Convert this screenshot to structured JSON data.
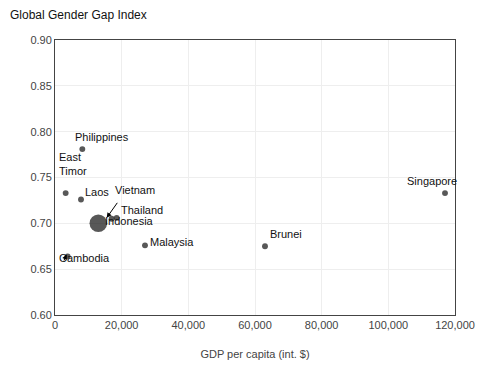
{
  "chart_data": {
    "type": "scatter",
    "title": "Global Gender Gap Index",
    "xlabel": "GDP per capita (int. $)",
    "x": [
      8200,
      3200,
      7800,
      17000,
      18500,
      13000,
      3800,
      27000,
      63000,
      117000
    ],
    "values": [
      0.781,
      0.733,
      0.726,
      0.705,
      0.706,
      0.7,
      0.664,
      0.676,
      0.675,
      0.733
    ],
    "sizes": [
      18,
      18,
      18,
      18,
      18,
      160,
      18,
      18,
      18,
      18
    ],
    "color": "#111111",
    "annotations": [
      {
        "text": "Philippines",
        "x": 5500,
        "y": 0.786
      },
      {
        "text": "East\nTimor",
        "x": 500,
        "y": 0.748
      },
      {
        "text": "Laos",
        "x": 8500,
        "y": 0.726
      },
      {
        "text": "Vietnam",
        "x": 17500,
        "y": 0.728
      },
      {
        "text": "Thailand",
        "x": 19200,
        "y": 0.706
      },
      {
        "text": "Indonesia",
        "x": 14500,
        "y": 0.694
      },
      {
        "text": "Cambodia",
        "x": 500,
        "y": 0.654
      },
      {
        "text": "Malaysia",
        "x": 28000,
        "y": 0.671
      },
      {
        "text": "Brunei",
        "x": 64000,
        "y": 0.68
      },
      {
        "text": "Singapore",
        "x": 105000,
        "y": 0.737
      }
    ],
    "arrows": [
      {
        "x_start": 19000,
        "y_start": 0.724,
        "x_end": 15500,
        "y_end": 0.706
      },
      {
        "x_start": 2500,
        "y_start": 0.658,
        "x_end": 3500,
        "y_end": 0.666
      }
    ],
    "xlim": [
      0,
      120000
    ],
    "xticks": [
      0,
      {
        "value": 20000,
        "label": "20,000"
      },
      {
        "value": 40000,
        "label": "40,000"
      },
      {
        "value": 60000,
        "label": "60,000"
      },
      {
        "value": 80000,
        "label": "80,000"
      },
      {
        "value": 100000,
        "label": "100,000"
      },
      {
        "value": 120000,
        "label": "120,000"
      }
    ],
    "ylim": [
      0.6,
      0.9
    ],
    "yticks": [
      {
        "value": 0.6,
        "label": "0.60"
      },
      0.65,
      {
        "value": 0.7,
        "label": "0.70"
      },
      0.75,
      {
        "value": 0.8,
        "label": "0.80"
      },
      0.85,
      {
        "value": 0.9,
        "label": "0.90"
      }
    ],
    "grid": true
  }
}
